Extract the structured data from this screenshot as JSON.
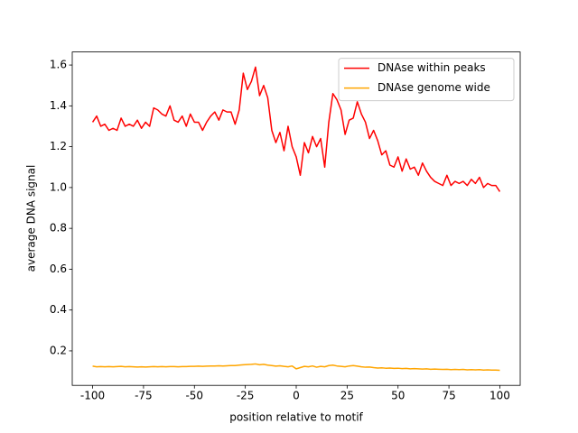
{
  "chart_data": {
    "type": "line",
    "xlabel": "position relative to motif",
    "ylabel": "average DNA signal",
    "x": [
      -100,
      -98,
      -96,
      -94,
      -92,
      -90,
      -88,
      -86,
      -84,
      -82,
      -80,
      -78,
      -76,
      -74,
      -72,
      -70,
      -68,
      -66,
      -64,
      -62,
      -60,
      -58,
      -56,
      -54,
      -52,
      -50,
      -48,
      -46,
      -44,
      -42,
      -40,
      -38,
      -36,
      -34,
      -32,
      -30,
      -28,
      -26,
      -24,
      -22,
      -20,
      -18,
      -16,
      -14,
      -12,
      -10,
      -8,
      -6,
      -4,
      -2,
      0,
      2,
      4,
      6,
      8,
      10,
      12,
      14,
      16,
      18,
      20,
      22,
      24,
      26,
      28,
      30,
      32,
      34,
      36,
      38,
      40,
      42,
      44,
      46,
      48,
      50,
      52,
      54,
      56,
      58,
      60,
      62,
      64,
      66,
      68,
      70,
      72,
      74,
      76,
      78,
      80,
      82,
      84,
      86,
      88,
      90,
      92,
      94,
      96,
      98,
      100
    ],
    "series": [
      {
        "name": "DNAse within peaks",
        "color": "#ff0000",
        "values": [
          1.32,
          1.35,
          1.3,
          1.31,
          1.28,
          1.29,
          1.28,
          1.34,
          1.3,
          1.31,
          1.3,
          1.33,
          1.29,
          1.32,
          1.3,
          1.39,
          1.38,
          1.36,
          1.35,
          1.4,
          1.33,
          1.32,
          1.35,
          1.3,
          1.36,
          1.32,
          1.32,
          1.28,
          1.32,
          1.35,
          1.37,
          1.33,
          1.38,
          1.37,
          1.37,
          1.31,
          1.38,
          1.56,
          1.48,
          1.52,
          1.59,
          1.45,
          1.5,
          1.44,
          1.28,
          1.22,
          1.27,
          1.18,
          1.3,
          1.2,
          1.15,
          1.06,
          1.22,
          1.17,
          1.25,
          1.2,
          1.24,
          1.1,
          1.32,
          1.46,
          1.43,
          1.38,
          1.26,
          1.33,
          1.34,
          1.42,
          1.36,
          1.32,
          1.24,
          1.28,
          1.23,
          1.16,
          1.18,
          1.11,
          1.1,
          1.15,
          1.08,
          1.14,
          1.09,
          1.1,
          1.06,
          1.12,
          1.08,
          1.05,
          1.03,
          1.02,
          1.01,
          1.06,
          1.01,
          1.03,
          1.02,
          1.03,
          1.01,
          1.04,
          1.02,
          1.05,
          1.0,
          1.02,
          1.01,
          1.01,
          0.98
        ]
      },
      {
        "name": "DNAse genome wide",
        "color": "#ffa500",
        "values": [
          0.125,
          0.122,
          0.123,
          0.122,
          0.123,
          0.122,
          0.123,
          0.124,
          0.122,
          0.123,
          0.122,
          0.121,
          0.122,
          0.121,
          0.122,
          0.123,
          0.122,
          0.123,
          0.122,
          0.123,
          0.123,
          0.122,
          0.123,
          0.123,
          0.124,
          0.124,
          0.125,
          0.124,
          0.125,
          0.126,
          0.126,
          0.127,
          0.126,
          0.127,
          0.128,
          0.128,
          0.13,
          0.132,
          0.133,
          0.134,
          0.136,
          0.132,
          0.134,
          0.13,
          0.128,
          0.125,
          0.127,
          0.124,
          0.122,
          0.126,
          0.112,
          0.118,
          0.124,
          0.122,
          0.126,
          0.12,
          0.124,
          0.122,
          0.128,
          0.13,
          0.126,
          0.124,
          0.122,
          0.126,
          0.128,
          0.125,
          0.122,
          0.12,
          0.121,
          0.118,
          0.116,
          0.117,
          0.115,
          0.116,
          0.114,
          0.115,
          0.113,
          0.114,
          0.112,
          0.113,
          0.112,
          0.111,
          0.112,
          0.11,
          0.111,
          0.11,
          0.109,
          0.11,
          0.108,
          0.109,
          0.108,
          0.109,
          0.107,
          0.108,
          0.107,
          0.108,
          0.106,
          0.107,
          0.106,
          0.106,
          0.105
        ]
      }
    ],
    "xlim": [
      -110,
      110
    ],
    "ylim": [
      0.031,
      1.664
    ],
    "xticks": [
      -100,
      -75,
      -50,
      -25,
      0,
      25,
      50,
      75,
      100
    ],
    "yticks": [
      0.2,
      0.4,
      0.6,
      0.8,
      {
        "value": 1,
        "label": "1.0"
      },
      1.2,
      1.4,
      1.6
    ],
    "legend": "upper right"
  }
}
